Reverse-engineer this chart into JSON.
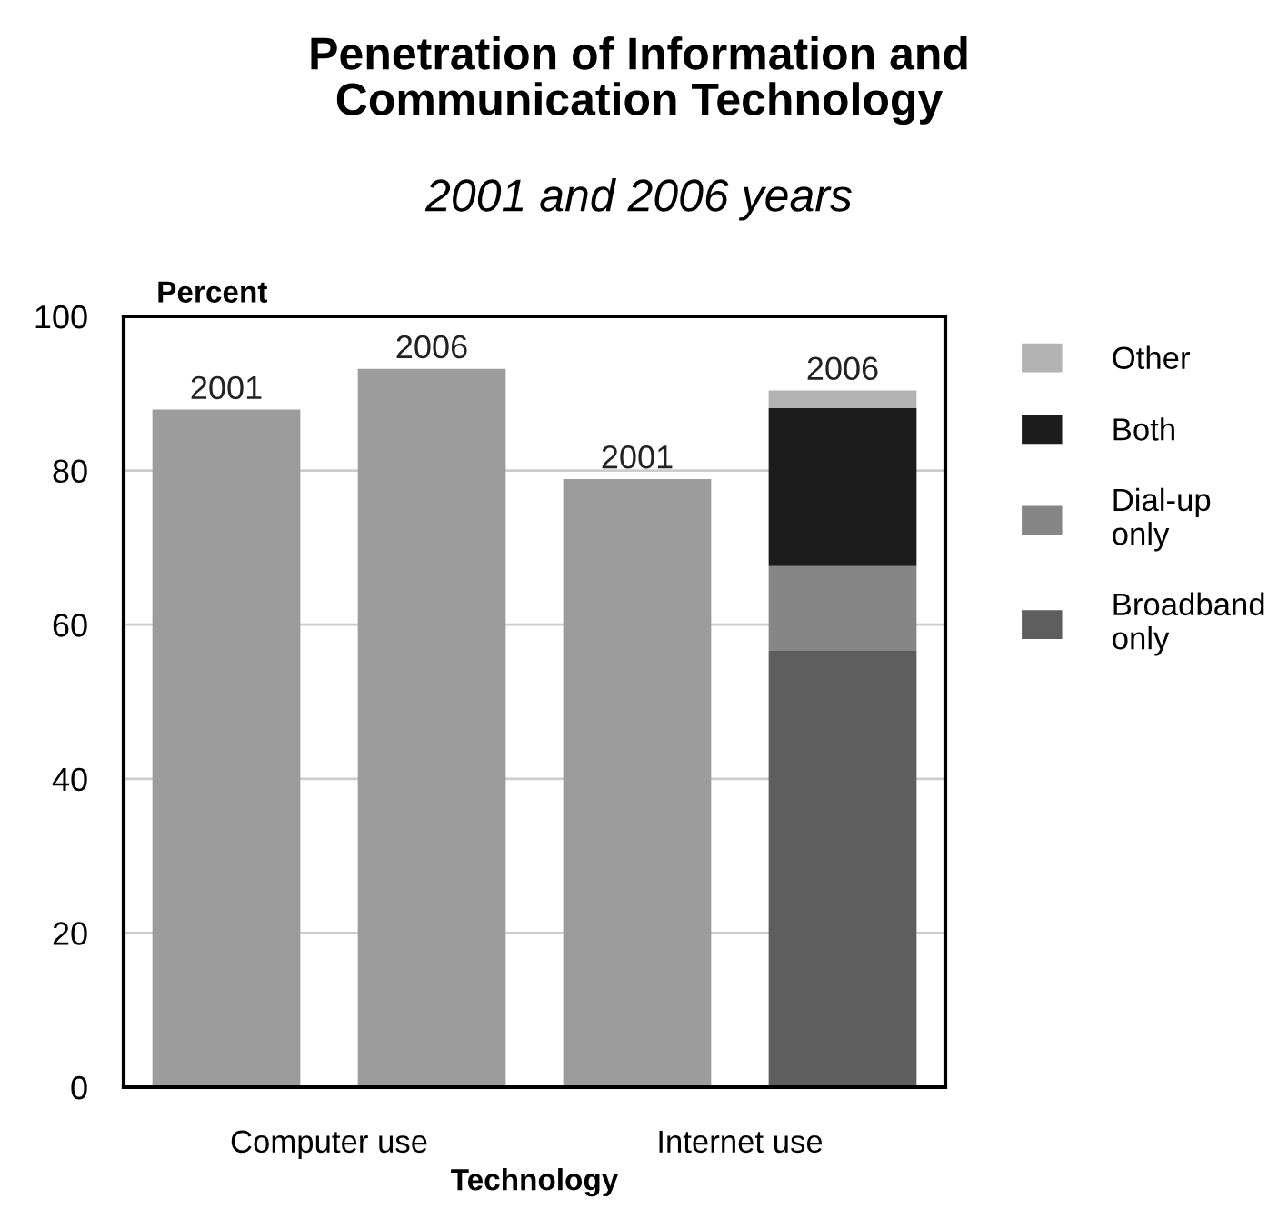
{
  "chart_data": {
    "type": "bar",
    "stacked": true,
    "title": "Penetration of Information and\nCommunication Technology",
    "subtitle": "2001 and 2006 years",
    "ylabel": "Percent",
    "xlabel": "Technology",
    "categories": [
      "2001",
      "2006",
      "2001",
      "2006"
    ],
    "annotations": [
      "Computer use",
      "Internet use"
    ],
    "series": [
      {
        "color": "#9c9c9c",
        "values": [
          87.9,
          93.2,
          78.9,
          null
        ]
      },
      {
        "name": "Broadband\nonly",
        "color": "#5e5e5e",
        "values": [
          null,
          null,
          null,
          56.6
        ]
      },
      {
        "name": "Dial-up\nonly",
        "color": "#868686",
        "values": [
          null,
          null,
          null,
          11.0
        ]
      },
      {
        "name": "Both",
        "color": "#1c1c1c",
        "values": [
          null,
          null,
          null,
          20.5
        ]
      },
      {
        "name": "Other",
        "color": "#b3b3b3",
        "values": [
          null,
          null,
          null,
          2.3
        ]
      }
    ],
    "ylim": [
      0,
      100
    ],
    "yticks": [
      0,
      20,
      40,
      60,
      80,
      100
    ],
    "grid": "y",
    "legend": "right"
  }
}
